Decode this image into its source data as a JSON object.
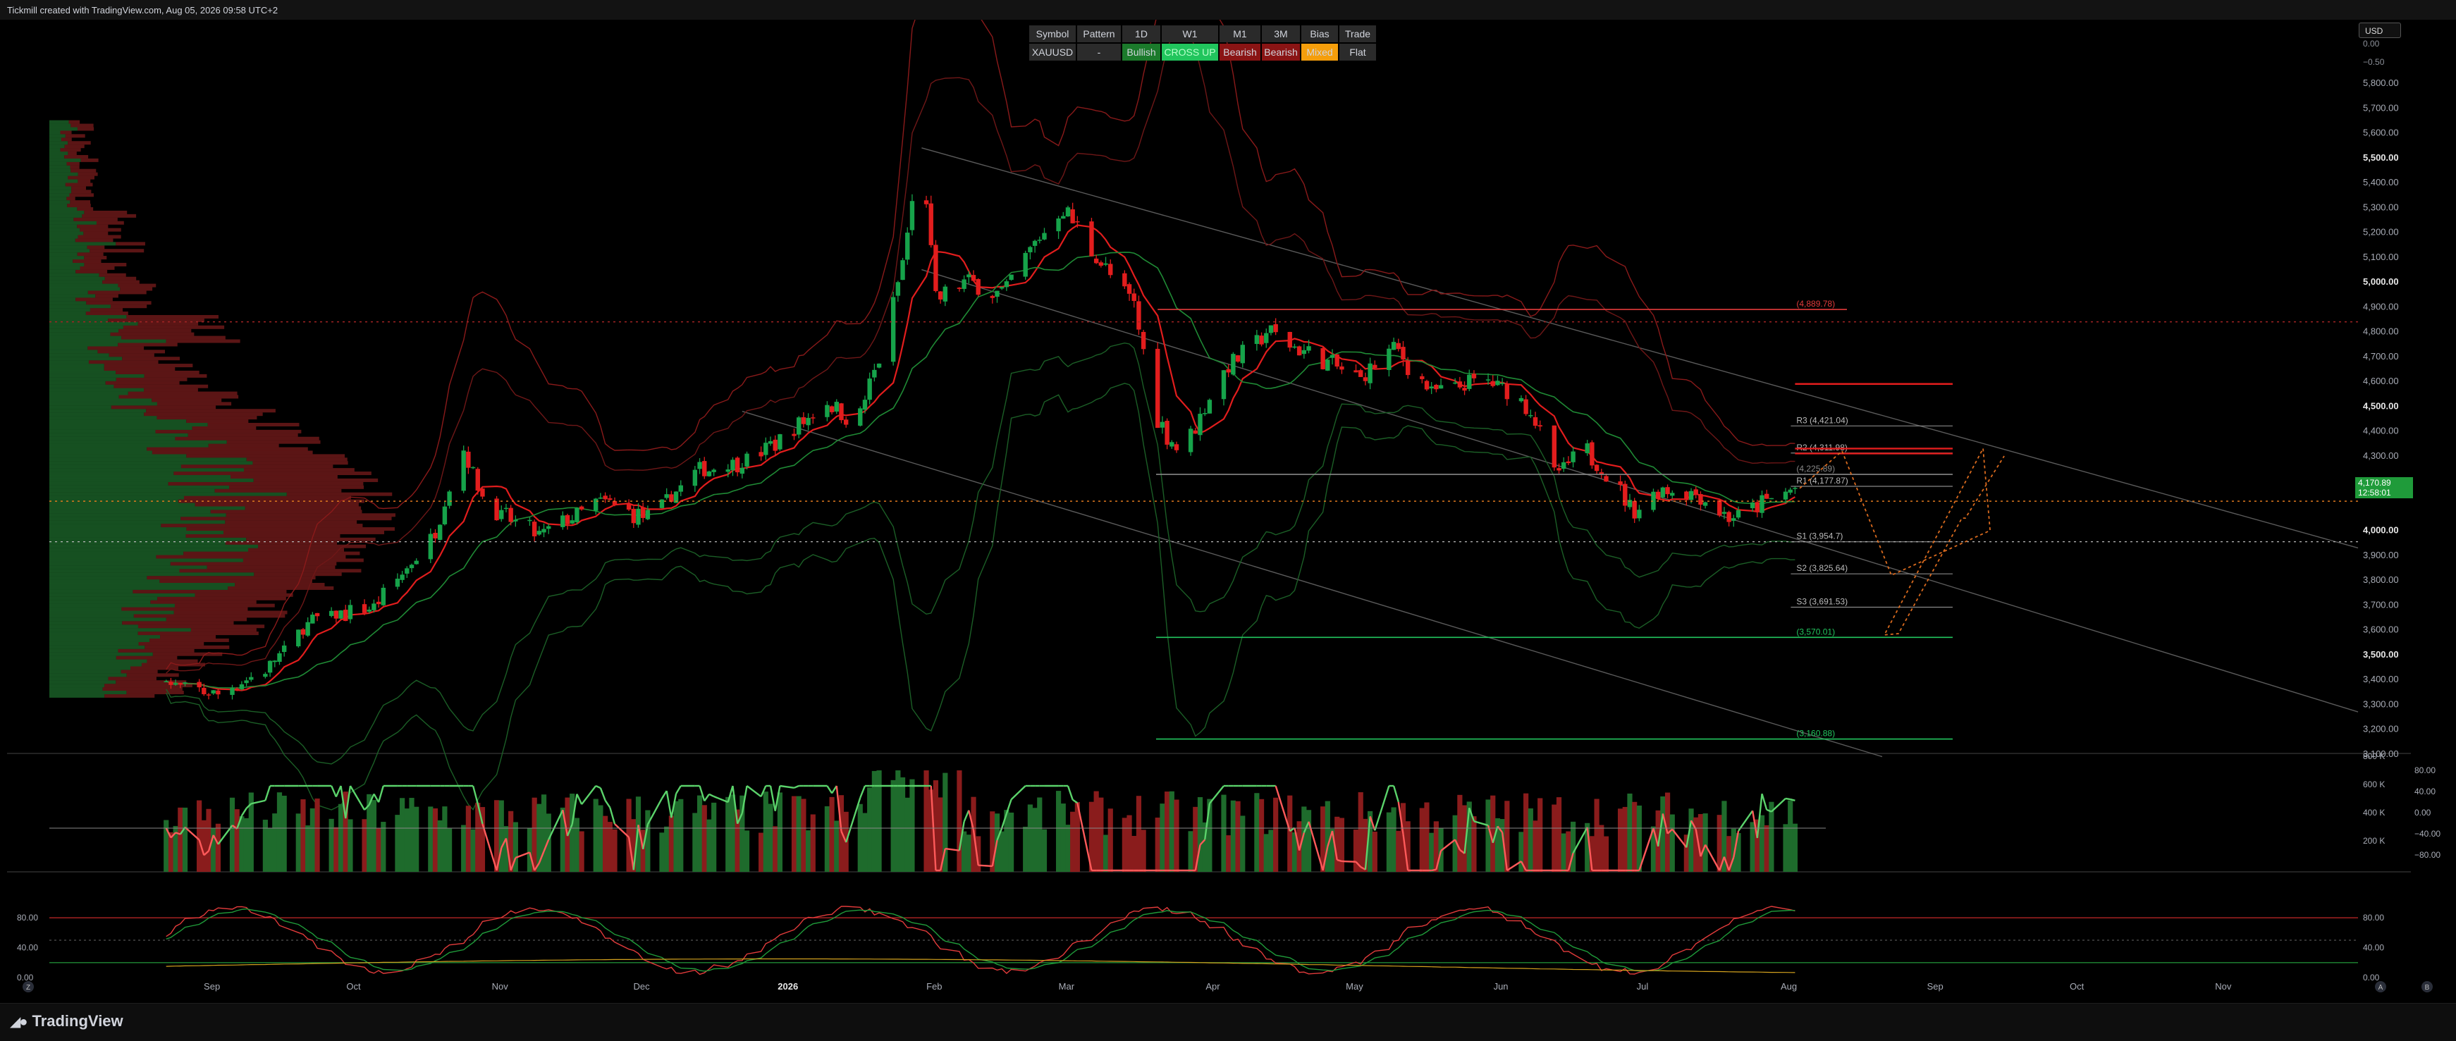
{
  "header": {
    "credit": "Tickmill created with TradingView.com, Aug 05, 2026 09:58 UTC+2"
  },
  "footer": {
    "logo_text": "TradingView",
    "left_btn": "Z",
    "right_btn1": "A",
    "right_btn2": "B"
  },
  "currency": "USD",
  "colors": {
    "bull": "#16a34a",
    "bear": "#e21d1d",
    "bg": "#000000",
    "mixed": "#f59e0b",
    "crossup": "#1fd45a"
  },
  "signal_table": {
    "header": [
      "Symbol",
      "Pattern",
      "1D",
      "W1",
      "M1",
      "3M",
      "Bias",
      "Trade"
    ],
    "row": [
      "XAUUSD",
      "-",
      "Bullish",
      "CROSS UP",
      "Bearish",
      "Bearish",
      "Mixed",
      "Flat"
    ],
    "row_colors": [
      "#2b2b2b",
      "#2b2b2b",
      "#1b7a2b",
      "#21c55d",
      "#8a1414",
      "#8a1414",
      "#f59e0b",
      "#2b2b2b"
    ]
  },
  "price_now": {
    "price": "4,170.89",
    "countdown": "12:58:01"
  },
  "levels": [
    {
      "label": "(4,889.78)",
      "price": 4889.78,
      "color": "#e23b3b"
    },
    {
      "label": "R3 (4,421.04)",
      "price": 4421.04,
      "color": "#bbbbbb"
    },
    {
      "label": "R2 (4,311.98)",
      "price": 4311.98,
      "color": "#bbbbbb"
    },
    {
      "label": "(4,225.89)",
      "price": 4225.89,
      "color": "#888888"
    },
    {
      "label": "R1 (4,177.87)",
      "price": 4177.87,
      "color": "#bbbbbb"
    },
    {
      "label": "S1 (3,954.7)",
      "price": 3954.7,
      "color": "#bbbbbb"
    },
    {
      "label": "S2 (3,825.64)",
      "price": 3825.64,
      "color": "#bbbbbb"
    },
    {
      "label": "S3 (3,691.53)",
      "price": 3691.53,
      "color": "#bbbbbb"
    },
    {
      "label": "(3,570.01)",
      "price": 3570.01,
      "color": "#22c55e"
    },
    {
      "label": "(3,160.88)",
      "price": 3160.88,
      "color": "#22c55e"
    }
  ],
  "chart_data": [
    {
      "type": "candlestick",
      "title": "XAUUSD 1D",
      "y_axis_ticks": [
        5800,
        5700,
        5600,
        5500,
        5400,
        5300,
        5200,
        5100,
        5000,
        4900,
        4800,
        4700,
        4600,
        4500,
        4400,
        4300,
        4200,
        4000,
        3900,
        3800,
        3700,
        3600,
        3500,
        3400,
        3300,
        3200,
        3100
      ],
      "y_tick_labels": [
        "5,800.00",
        "5,700.00",
        "5,600.00",
        "5,500.00",
        "5,400.00",
        "5,300.00",
        "5,200.00",
        "5,100.00",
        "5,000.00",
        "4,900.00",
        "4,800.00",
        "4,700.00",
        "4,600.00",
        "4,500.00",
        "4,400.00",
        "4,300.00",
        "4,200.00",
        "4,000.00",
        "3,900.00",
        "3,800.00",
        "3,700.00",
        "3,600.00",
        "3,500.00",
        "3,400.00",
        "3,300.00",
        "3,200.00",
        "3,100.00"
      ],
      "y_top_labels": [
        "0.00",
        "−0.50"
      ],
      "ylim": [
        3100,
        5880
      ],
      "x_labels": [
        "Sep",
        "Oct",
        "Nov",
        "Dec",
        "2026",
        "Feb",
        "Mar",
        "Apr",
        "May",
        "Jun",
        "Jul",
        "Aug",
        "Sep",
        "Oct",
        "Nov"
      ],
      "anchors": [
        [
          "2025-08-25",
          3380
        ],
        [
          "2025-09-05",
          3340
        ],
        [
          "2025-09-15",
          3440
        ],
        [
          "2025-09-25",
          3640
        ],
        [
          "2025-10-08",
          3690
        ],
        [
          "2025-10-20",
          3960
        ],
        [
          "2025-10-27",
          4330
        ],
        [
          "2025-11-01",
          4090
        ],
        [
          "2025-11-12",
          3980
        ],
        [
          "2025-11-25",
          4120
        ],
        [
          "2025-12-05",
          4050
        ],
        [
          "2025-12-15",
          4230
        ],
        [
          "2025-12-28",
          4300
        ],
        [
          "2026-01-06",
          4420
        ],
        [
          "2026-01-12",
          4520
        ],
        [
          "2026-01-18",
          4420
        ],
        [
          "2026-01-24",
          4750
        ],
        [
          "2026-01-28",
          5080
        ],
        [
          "2026-02-01",
          5550
        ],
        [
          "2026-02-04",
          4920
        ],
        [
          "2026-02-10",
          5000
        ],
        [
          "2026-02-18",
          4950
        ],
        [
          "2026-02-26",
          5180
        ],
        [
          "2026-03-03",
          5300
        ],
        [
          "2026-03-10",
          5100
        ],
        [
          "2026-03-18",
          4900
        ],
        [
          "2026-03-23",
          4450
        ],
        [
          "2026-03-28",
          4300
        ],
        [
          "2026-04-05",
          4620
        ],
        [
          "2026-04-15",
          4800
        ],
        [
          "2026-04-25",
          4700
        ],
        [
          "2026-05-05",
          4610
        ],
        [
          "2026-05-12",
          4740
        ],
        [
          "2026-05-20",
          4560
        ],
        [
          "2026-06-01",
          4600
        ],
        [
          "2026-06-10",
          4500
        ],
        [
          "2026-06-15",
          4230
        ],
        [
          "2026-06-22",
          4320
        ],
        [
          "2026-07-02",
          4080
        ],
        [
          "2026-07-08",
          4170
        ],
        [
          "2026-07-15",
          4150
        ],
        [
          "2026-07-22",
          4050
        ],
        [
          "2026-08-05",
          4170.89
        ]
      ]
    },
    {
      "type": "bar",
      "title": "Volume",
      "y_tick_labels": [
        "800 K",
        "600 K",
        "400 K",
        "200 K"
      ],
      "rsi_tick_labels": [
        "80.00",
        "40.00",
        "0.00",
        "−40.00",
        "−80.00"
      ]
    },
    {
      "type": "line",
      "title": "Stochastic",
      "y_tick_labels": [
        "80.00",
        "40.00",
        "0.00"
      ],
      "left_tick_labels": [
        "80.00",
        "40.00",
        "0.00"
      ]
    }
  ]
}
